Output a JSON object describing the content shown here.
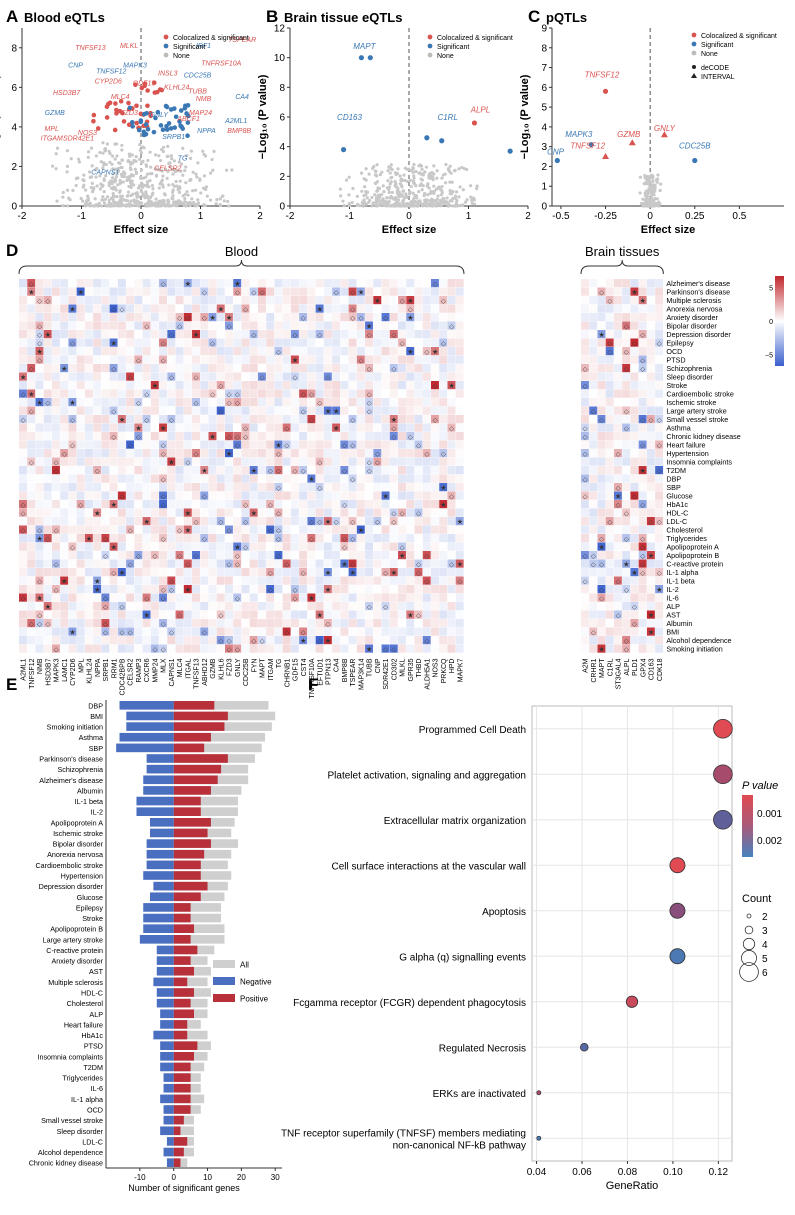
{
  "colors": {
    "red": "#d9534f",
    "blue": "#3a78b5",
    "gray": "#c8c8c8",
    "axis": "#333333",
    "grid": "#e6e6e6",
    "heat_pos": "#c0272d",
    "heat_neg": "#3a5fcd",
    "bar_neg": "#4a6fc0",
    "bar_pos": "#b7303a",
    "bar_all": "#cfcfcf"
  },
  "panel_labels": [
    "A",
    "B",
    "C",
    "D",
    "E",
    "F"
  ],
  "chart_data": [
    {
      "id": "A",
      "type": "scatter",
      "title": "Blood eQTLs",
      "xlabel": "Effect size",
      "ylabel": "−Log₁₀ (P value)",
      "xlim": [
        -2,
        2
      ],
      "ylim": [
        0,
        9
      ],
      "xticks": [
        -2,
        -1,
        0,
        1,
        2
      ],
      "yticks": [
        0,
        2,
        4,
        6,
        8
      ],
      "legend": [
        "Colocalized & significant",
        "Significant",
        "None"
      ],
      "labels": [
        {
          "t": "TNFSF13",
          "x": -0.85,
          "y": 7.9,
          "c": "red"
        },
        {
          "t": "MLKL",
          "x": -0.2,
          "y": 8.0,
          "c": "red"
        },
        {
          "t": "TSPEAR",
          "x": 1.7,
          "y": 8.3,
          "c": "red"
        },
        {
          "t": "IRF1",
          "x": 1.05,
          "y": 8.0,
          "c": "blue"
        },
        {
          "t": "CNP",
          "x": -1.1,
          "y": 7.0,
          "c": "blue"
        },
        {
          "t": "MAPK3",
          "x": -0.1,
          "y": 7.0,
          "c": "blue"
        },
        {
          "t": "TNFRSF10A",
          "x": 1.35,
          "y": 7.1,
          "c": "red"
        },
        {
          "t": "TNFSF12",
          "x": -0.5,
          "y": 6.7,
          "c": "blue"
        },
        {
          "t": "INSL3",
          "x": 0.45,
          "y": 6.6,
          "c": "red"
        },
        {
          "t": "CDC25B",
          "x": 0.95,
          "y": 6.5,
          "c": "blue"
        },
        {
          "t": "CYP2D6",
          "x": -0.55,
          "y": 6.2,
          "c": "red"
        },
        {
          "t": "ODF15",
          "x": 0.05,
          "y": 6.1,
          "c": "red"
        },
        {
          "t": "KLHL24",
          "x": 0.6,
          "y": 5.9,
          "c": "red"
        },
        {
          "t": "TUBB",
          "x": 0.95,
          "y": 5.7,
          "c": "red"
        },
        {
          "t": "HSD3B7",
          "x": -1.25,
          "y": 5.6,
          "c": "red"
        },
        {
          "t": "MLC4",
          "x": -0.35,
          "y": 5.4,
          "c": "red"
        },
        {
          "t": "NMB",
          "x": 1.05,
          "y": 5.3,
          "c": "red"
        },
        {
          "t": "CA4",
          "x": 1.7,
          "y": 5.4,
          "c": "blue"
        },
        {
          "t": "GZMB",
          "x": -1.45,
          "y": 4.6,
          "c": "blue"
        },
        {
          "t": "FZD3",
          "x": -0.2,
          "y": 4.6,
          "c": "red"
        },
        {
          "t": "GNLY",
          "x": 0.3,
          "y": 4.5,
          "c": "blue"
        },
        {
          "t": "ABCF1",
          "x": 0.8,
          "y": 4.3,
          "c": "red"
        },
        {
          "t": "MAP24",
          "x": 1.0,
          "y": 4.6,
          "c": "red"
        },
        {
          "t": "A2ML1",
          "x": 1.6,
          "y": 4.2,
          "c": "blue"
        },
        {
          "t": "MPL",
          "x": -1.5,
          "y": 3.8,
          "c": "red"
        },
        {
          "t": "NOS3",
          "x": -0.9,
          "y": 3.6,
          "c": "red"
        },
        {
          "t": "SRPB1",
          "x": 0.55,
          "y": 3.4,
          "c": "blue"
        },
        {
          "t": "NPPA",
          "x": 1.1,
          "y": 3.7,
          "c": "blue"
        },
        {
          "t": "BMP8B",
          "x": 1.65,
          "y": 3.7,
          "c": "red"
        },
        {
          "t": "ITGAM",
          "x": -1.5,
          "y": 3.3,
          "c": "red"
        },
        {
          "t": "SDR42E1",
          "x": -1.05,
          "y": 3.3,
          "c": "red"
        },
        {
          "t": "TG",
          "x": 0.7,
          "y": 2.3,
          "c": "blue"
        },
        {
          "t": "CAPNS1",
          "x": -0.6,
          "y": 1.6,
          "c": "blue"
        },
        {
          "t": "CELSR2",
          "x": 0.45,
          "y": 1.8,
          "c": "red"
        }
      ]
    },
    {
      "id": "B",
      "type": "scatter",
      "title": "Brain tissue eQTLs",
      "xlabel": "Effect size",
      "ylabel": "−Log₁₀ (P value)",
      "xlim": [
        -2,
        2
      ],
      "ylim": [
        0,
        12
      ],
      "xticks": [
        -2,
        -1,
        0,
        1,
        2
      ],
      "yticks": [
        0,
        2,
        4,
        6,
        8,
        10,
        12
      ],
      "legend": [
        "Colocalized & significant",
        "Significant",
        "None"
      ],
      "labels": [
        {
          "t": "MAPT",
          "x": -0.75,
          "y": 10.6,
          "c": "blue"
        },
        {
          "t": "ALPL",
          "x": 1.2,
          "y": 6.3,
          "c": "red"
        },
        {
          "t": "CD163",
          "x": -1.0,
          "y": 5.8,
          "c": "blue"
        },
        {
          "t": "C1RL",
          "x": 0.65,
          "y": 5.8,
          "c": "blue"
        }
      ],
      "points": [
        {
          "x": -0.8,
          "y": 10.0,
          "c": "blue"
        },
        {
          "x": -0.65,
          "y": 10.0,
          "c": "blue"
        },
        {
          "x": 1.1,
          "y": 5.6,
          "c": "red"
        },
        {
          "x": -1.1,
          "y": 3.8,
          "c": "blue"
        },
        {
          "x": 0.3,
          "y": 4.6,
          "c": "blue"
        },
        {
          "x": 0.55,
          "y": 4.4,
          "c": "blue"
        },
        {
          "x": 1.7,
          "y": 3.7,
          "c": "blue"
        }
      ]
    },
    {
      "id": "C",
      "type": "scatter",
      "title": "pQTLs",
      "xlabel": "Effect size",
      "ylabel": "−Log₁₀ (P value)",
      "xlim": [
        -0.55,
        0.75
      ],
      "ylim": [
        0,
        9
      ],
      "xticks": [
        -0.5,
        -0.25,
        0,
        0.25,
        0.5
      ],
      "yticks": [
        0,
        1,
        2,
        3,
        4,
        5,
        6,
        7,
        8,
        9
      ],
      "legend": [
        "Colocalized & significant",
        "Significant",
        "None",
        "deCODE",
        "INTERVAL"
      ],
      "labels": [
        {
          "t": "TNFSF12",
          "x": -0.27,
          "y": 6.5,
          "c": "red"
        },
        {
          "t": "GNLY",
          "x": 0.08,
          "y": 3.8,
          "c": "red"
        },
        {
          "t": "MAPK3",
          "x": -0.4,
          "y": 3.5,
          "c": "blue"
        },
        {
          "t": "GZMB",
          "x": -0.12,
          "y": 3.5,
          "c": "red"
        },
        {
          "t": "TNFSF12",
          "x": -0.35,
          "y": 2.9,
          "c": "red"
        },
        {
          "t": "CNP",
          "x": -0.53,
          "y": 2.6,
          "c": "blue"
        },
        {
          "t": "CDC25B",
          "x": 0.25,
          "y": 2.9,
          "c": "blue"
        }
      ],
      "points": [
        {
          "x": -0.25,
          "y": 5.8,
          "c": "red",
          "s": "circle"
        },
        {
          "x": 0.08,
          "y": 3.6,
          "c": "red",
          "s": "tri"
        },
        {
          "x": -0.33,
          "y": 3.1,
          "c": "blue",
          "s": "circle"
        },
        {
          "x": -0.1,
          "y": 3.2,
          "c": "red",
          "s": "tri"
        },
        {
          "x": -0.25,
          "y": 2.5,
          "c": "red",
          "s": "tri"
        },
        {
          "x": -0.52,
          "y": 2.3,
          "c": "blue",
          "s": "circle"
        },
        {
          "x": 0.25,
          "y": 2.3,
          "c": "blue",
          "s": "circle"
        }
      ]
    },
    {
      "id": "D",
      "type": "heatmap",
      "group_blood": "Blood",
      "group_brain": "Brain tissues",
      "legend_ticks": [
        "5",
        "0",
        "−5"
      ],
      "blood_genes": [
        "A2ML1",
        "TNFSF12",
        "NMB",
        "HSD3B7",
        "MAPK3",
        "LAMC1",
        "CYP2D6",
        "MPL",
        "KLHL24",
        "NPPA",
        "SRPB1",
        "RRM1",
        "CDC42BPB",
        "CELSR2",
        "RAMP3",
        "CXCR6",
        "MMP24",
        "MLX",
        "CAPNS1",
        "MLC4",
        "ITGAL",
        "TNFSF13",
        "ABHD12",
        "GZMB",
        "KLHL6",
        "FZD3",
        "GNLY",
        "CDC25B",
        "FYN",
        "MAPT",
        "ITGAM",
        "TG",
        "CHRNB1",
        "GDF15",
        "CST4",
        "TNFRSF10A",
        "EFTUD1",
        "PTPN13",
        "CA4",
        "BMP8B",
        "TSPEAR",
        "MAP3K14",
        "TUBB",
        "CNP",
        "SDR42E1",
        "CD302",
        "MLKL",
        "GPR35",
        "THBD",
        "ALDH5A1",
        "NOS3",
        "PRKCQ",
        "HPD",
        "MAPK7"
      ],
      "brain_genes": [
        "A2M",
        "CRHR1",
        "MAPT",
        "C1RL",
        "ST3GAL4",
        "ALPL",
        "PLD1",
        "GPX4",
        "CD163",
        "CDK18"
      ],
      "traits": [
        "Alzheimer's disease",
        "Parkinson's disease",
        "Multiple sclerosis",
        "Anorexia nervosa",
        "Anxiety disorder",
        "Bipolar disorder",
        "Depression disorder",
        "Epilepsy",
        "OCD",
        "PTSD",
        "Schizophrenia",
        "Sleep disorder",
        "Stroke",
        "Cardioembolic stroke",
        "Ischemic stroke",
        "Large artery stroke",
        "Small vessel stroke",
        "Asthma",
        "Chronic kidney disease",
        "Heart failure",
        "Hypertension",
        "Insomnia complaints",
        "T2DM",
        "DBP",
        "SBP",
        "Glucose",
        "HbA1c",
        "HDL-C",
        "LDL-C",
        "Cholesterol",
        "Triglycerides",
        "Apolipoprotein A",
        "Apolipoprotein B",
        "C-reactive protein",
        "IL-1 alpha",
        "IL-1 beta",
        "IL-2",
        "IL-6",
        "ALP",
        "AST",
        "Albumin",
        "BMI",
        "Alcohol dependence",
        "Smoking initiation"
      ],
      "legend_marks": [
        "★",
        "◇"
      ]
    },
    {
      "id": "E",
      "type": "bar",
      "xlabel": "Number of significant genes",
      "xlim": [
        -20,
        32
      ],
      "xticks": [
        -10,
        0,
        10,
        20,
        30
      ],
      "legend": [
        "All",
        "Negative",
        "Positive"
      ],
      "categories": [
        "DBP",
        "BMI",
        "Smoking initiation",
        "Asthma",
        "SBP",
        "Parkinson's disease",
        "Schizophrenia",
        "Alzheimer's disease",
        "Albumin",
        "IL-1 beta",
        "IL-2",
        "Apolipoprotein A",
        "Ischemic stroke",
        "Bipolar disorder",
        "Anorexia nervosa",
        "Cardioembolic stroke",
        "Hypertension",
        "Depression disorder",
        "Glucose",
        "Epilepsy",
        "Stroke",
        "Apolipoprotein B",
        "Large artery stroke",
        "C-reactive protein",
        "Anxiety disorder",
        "AST",
        "Multiple sclerosis",
        "HDL-C",
        "Cholesterol",
        "ALP",
        "Heart failure",
        "HbA1c",
        "PTSD",
        "Insomnia complaints",
        "T2DM",
        "Triglycerides",
        "IL-6",
        "IL-1 alpha",
        "OCD",
        "Small vessel stroke",
        "Sleep disorder",
        "LDL-C",
        "Alcohol dependence",
        "Chronic kidney disease"
      ],
      "series": [
        {
          "name": "Negative",
          "values": [
            -16,
            -14,
            -14,
            -16,
            -17,
            -8,
            -8,
            -9,
            -9,
            -11,
            -11,
            -7,
            -7,
            -8,
            -8,
            -8,
            -9,
            -6,
            -7,
            -9,
            -9,
            -9,
            -10,
            -5,
            -5,
            -5,
            -6,
            -5,
            -5,
            -4,
            -4,
            -6,
            -4,
            -4,
            -4,
            -3,
            -3,
            -4,
            -3,
            -3,
            -4,
            -2,
            -3,
            -2
          ]
        },
        {
          "name": "Positive",
          "values": [
            12,
            16,
            15,
            11,
            9,
            16,
            14,
            13,
            11,
            8,
            8,
            11,
            10,
            11,
            9,
            8,
            8,
            10,
            8,
            5,
            5,
            6,
            5,
            7,
            5,
            6,
            4,
            6,
            5,
            6,
            4,
            4,
            7,
            6,
            5,
            5,
            5,
            5,
            5,
            3,
            2,
            4,
            3,
            2
          ]
        },
        {
          "name": "All",
          "values": [
            28,
            30,
            29,
            27,
            26,
            24,
            22,
            22,
            20,
            19,
            19,
            18,
            17,
            19,
            17,
            16,
            17,
            16,
            15,
            14,
            14,
            15,
            15,
            12,
            10,
            11,
            10,
            11,
            10,
            10,
            8,
            10,
            11,
            10,
            9,
            8,
            8,
            9,
            8,
            6,
            6,
            6,
            6,
            4
          ]
        }
      ]
    },
    {
      "id": "F",
      "type": "scatter",
      "subtype": "dotplot",
      "xlabel": "GeneRatio",
      "xlim": [
        0.038,
        0.126
      ],
      "xticks": [
        0.04,
        0.06,
        0.08,
        0.1,
        0.12
      ],
      "categories": [
        "Programmed Cell Death",
        "Platelet activation, signaling and aggregation",
        "Extracellular matrix organization",
        "Cell surface interactions at the vascular wall",
        "Apoptosis",
        "G alpha (q) signalling events",
        "Fcgamma receptor (FCGR) dependent phagocytosis",
        "Regulated Necrosis",
        "ERKs are inactivated",
        "TNF receptor superfamily (TNFSF) members mediating\nnon-canonical NF-kB pathway"
      ],
      "gene_ratio": [
        0.122,
        0.122,
        0.122,
        0.102,
        0.102,
        0.102,
        0.082,
        0.061,
        0.041,
        0.041
      ],
      "count": [
        6,
        6,
        6,
        5,
        5,
        5,
        4,
        3,
        2,
        2
      ],
      "p_value": [
        0.0004,
        0.0009,
        0.0018,
        0.0004,
        0.0012,
        0.0023,
        0.0006,
        0.002,
        0.0008,
        0.0025
      ],
      "legend_p_title": "P value",
      "legend_p_ticks": [
        "0.001",
        "0.002"
      ],
      "legend_count_title": "Count",
      "legend_count_values": [
        "2",
        "3",
        "4",
        "5",
        "6"
      ]
    }
  ]
}
